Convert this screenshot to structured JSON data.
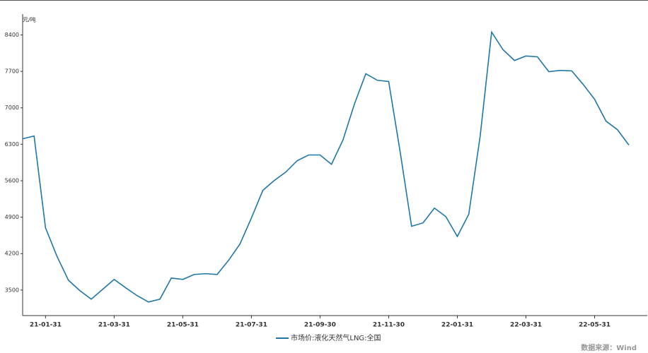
{
  "chart_data": {
    "type": "line",
    "y_label": "元/吨",
    "source": "数据来源：Wind",
    "categories": [
      null,
      null,
      "21-01-31",
      null,
      null,
      null,
      null,
      null,
      "21-03-31",
      null,
      null,
      null,
      null,
      null,
      "21-05-31",
      null,
      null,
      null,
      null,
      null,
      "21-07-31",
      null,
      null,
      null,
      null,
      null,
      "21-09-30",
      null,
      null,
      null,
      null,
      null,
      "21-11-30",
      null,
      null,
      null,
      null,
      null,
      "22-01-31",
      null,
      null,
      null,
      null,
      null,
      "22-03-31",
      null,
      null,
      null,
      null,
      null,
      "22-05-31",
      null,
      null,
      null
    ],
    "series": [
      {
        "name": "市场价:液化天然气LNG:全国",
        "color": "#1f77a8",
        "values": [
          6405,
          6460,
          4695,
          4150,
          3690,
          3490,
          3325,
          3515,
          3705,
          3545,
          3395,
          3270,
          3325,
          3730,
          3705,
          3800,
          3815,
          3800,
          4070,
          4385,
          4885,
          5415,
          5605,
          5765,
          5985,
          6095,
          6095,
          5915,
          6380,
          7070,
          7655,
          7530,
          7505,
          6160,
          4725,
          4790,
          5075,
          4910,
          4530,
          4955,
          6460,
          8455,
          8115,
          7910,
          7995,
          7980,
          7695,
          7720,
          7710,
          7450,
          7165,
          6745,
          6580,
          6285
        ]
      }
    ],
    "ylim": [
      3010,
      8800
    ],
    "yticks": [
      3500,
      4200,
      4900,
      5600,
      6300,
      7000,
      7700,
      8400
    ],
    "legend": "bottom"
  }
}
